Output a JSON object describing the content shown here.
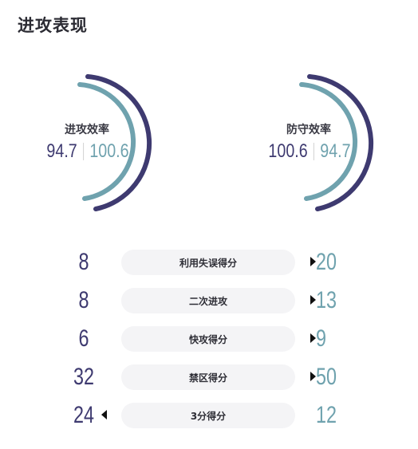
{
  "title": "进攻表现",
  "gauges": [
    {
      "label": "进攻效率",
      "team_value": "94.7",
      "opponent_value": "100.6",
      "team_color": "#3e3a70",
      "opponent_color": "#6fa2ae"
    },
    {
      "label": "防守效率",
      "team_value": "100.6",
      "opponent_value": "94.7",
      "team_color": "#3e3a70",
      "opponent_color": "#6fa2ae"
    }
  ],
  "stats": [
    {
      "label": "利用失误得分",
      "left": "8",
      "right": "20",
      "leader": "right"
    },
    {
      "label": "二次进攻",
      "left": "8",
      "right": "13",
      "leader": "right"
    },
    {
      "label": "快攻得分",
      "left": "6",
      "right": "9",
      "leader": "right"
    },
    {
      "label": "禁区得分",
      "left": "32",
      "right": "50",
      "leader": "right"
    },
    {
      "label": "3分得分",
      "left": "24",
      "right": "12",
      "leader": "left"
    }
  ]
}
